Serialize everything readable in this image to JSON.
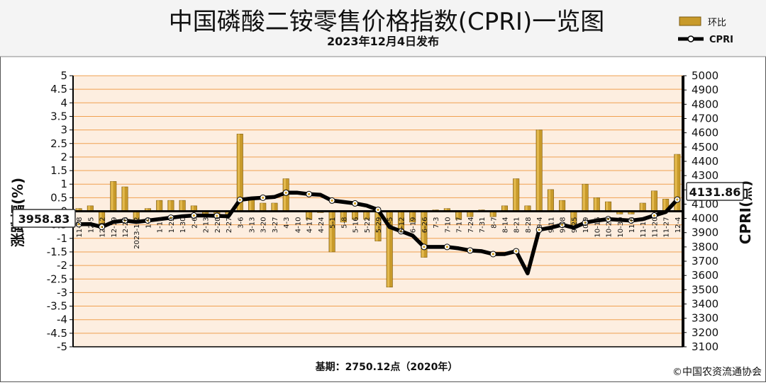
{
  "header": {
    "title": "中国磷酸二铵零售价格指数(CPRI)一览图",
    "subtitle": "2023年12月4日发布"
  },
  "footer": {
    "base_note": "基期：2750.12点（2020年）",
    "copyright": "©中国农资流通协会"
  },
  "callouts": {
    "start_value": "3958.83",
    "end_value": "4131.86"
  },
  "colors": {
    "bar_fill": "#c89a2a",
    "bar_highlight": "#f0c860",
    "grid_line": "#f0a050",
    "line": "#000000",
    "point_fill": "#ffffff",
    "point_center": "#d4a020"
  },
  "chart_data": {
    "type": "bar",
    "title": "中国磷酸二铵零售价格指数(CPRI)一览图",
    "subtitle": "2023年12月4日发布",
    "ylabel": "涨跌幅(%)",
    "y2label": "CPRI(点)",
    "ylim": [
      -5,
      5
    ],
    "y2lim": [
      3100,
      5000
    ],
    "ytick_step": 0.5,
    "y2tick_step": 100,
    "grid": true,
    "legend_position": "top-right",
    "categories": [
      "11-28",
      "12-5",
      "12-12",
      "12-19",
      "12-26",
      "2023-1-2",
      "1-9",
      "1-16",
      "1-23",
      "1-30",
      "2-6",
      "2-13",
      "2-20",
      "2-27",
      "3-6",
      "3-13",
      "3-20",
      "3-27",
      "4-3",
      "4-10",
      "4-17",
      "4-24",
      "5-1",
      "5-8",
      "5-16",
      "5-22",
      "5-29",
      "6-5",
      "6-12",
      "6-19",
      "6-26",
      "7-3",
      "7-10",
      "7-17",
      "7-24",
      "7-31",
      "8-7",
      "8-14",
      "8-21",
      "8-28",
      "9-4",
      "9-11",
      "9-18",
      "9-25",
      "10-9",
      "10-16",
      "10-23",
      "10-30",
      "11-6",
      "11-13",
      "11-20",
      "11-27",
      "12-4"
    ],
    "series": [
      {
        "name": "环比",
        "type": "bar",
        "axis": "left",
        "values": [
          0.1,
          0.2,
          -0.5,
          1.1,
          0.9,
          -0.3,
          0.1,
          0.4,
          0.4,
          0.4,
          0.2,
          -0.1,
          -0.1,
          -0.1,
          2.85,
          0.5,
          0.3,
          0.3,
          1.2,
          0.02,
          -0.3,
          -0.05,
          -1.5,
          -0.4,
          -0.3,
          -0.3,
          -1.1,
          -2.8,
          -0.7,
          -0.4,
          -1.7,
          0.05,
          0.1,
          -0.3,
          -0.2,
          0.05,
          -0.2,
          0.2,
          1.2,
          0.2,
          3.0,
          0.8,
          0.4,
          -0.5,
          1.0,
          0.5,
          0.35,
          -0.1,
          -0.1,
          0.3,
          0.75,
          0.45,
          2.1
        ]
      },
      {
        "name": "CPRI",
        "type": "line",
        "axis": "right",
        "values": [
          3958.83,
          3960,
          3940,
          3975,
          3985,
          3975,
          3985,
          3995,
          4005,
          4015,
          4020,
          4020,
          4018,
          4015,
          4130,
          4140,
          4145,
          4150,
          4180,
          4180,
          4170,
          4165,
          4125,
          4115,
          4105,
          4090,
          4060,
          3940,
          3910,
          3880,
          3800,
          3800,
          3800,
          3790,
          3775,
          3770,
          3750,
          3750,
          3770,
          3615,
          3920,
          3935,
          3955,
          3935,
          3970,
          3985,
          3995,
          3990,
          3985,
          3995,
          4020,
          4045,
          4131.86
        ]
      }
    ]
  }
}
